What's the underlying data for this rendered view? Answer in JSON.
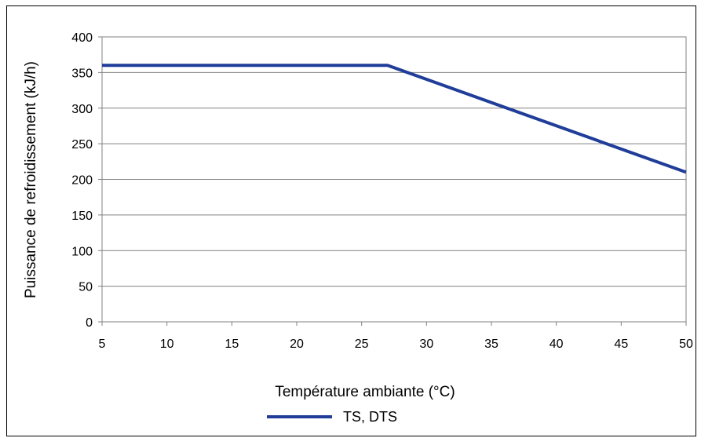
{
  "chart_data": {
    "type": "line",
    "xlabel": "Température ambiante (°C)",
    "ylabel": "Puissance de refroidissement (kJ/h)",
    "xlim": [
      5,
      50
    ],
    "ylim": [
      0,
      400
    ],
    "x_ticks": [
      "5",
      "10",
      "15",
      "20",
      "25",
      "30",
      "35",
      "40",
      "45",
      "50"
    ],
    "y_ticks": [
      "0",
      "50",
      "100",
      "150",
      "200",
      "250",
      "300",
      "350",
      "400"
    ],
    "grid": "horizontal",
    "legend_position": "bottom",
    "series": [
      {
        "name": "TS, DTS",
        "color": "#1f3d99",
        "points": [
          {
            "x": 5,
            "y": 360
          },
          {
            "x": 27,
            "y": 360
          },
          {
            "x": 50,
            "y": 210
          }
        ]
      }
    ]
  }
}
